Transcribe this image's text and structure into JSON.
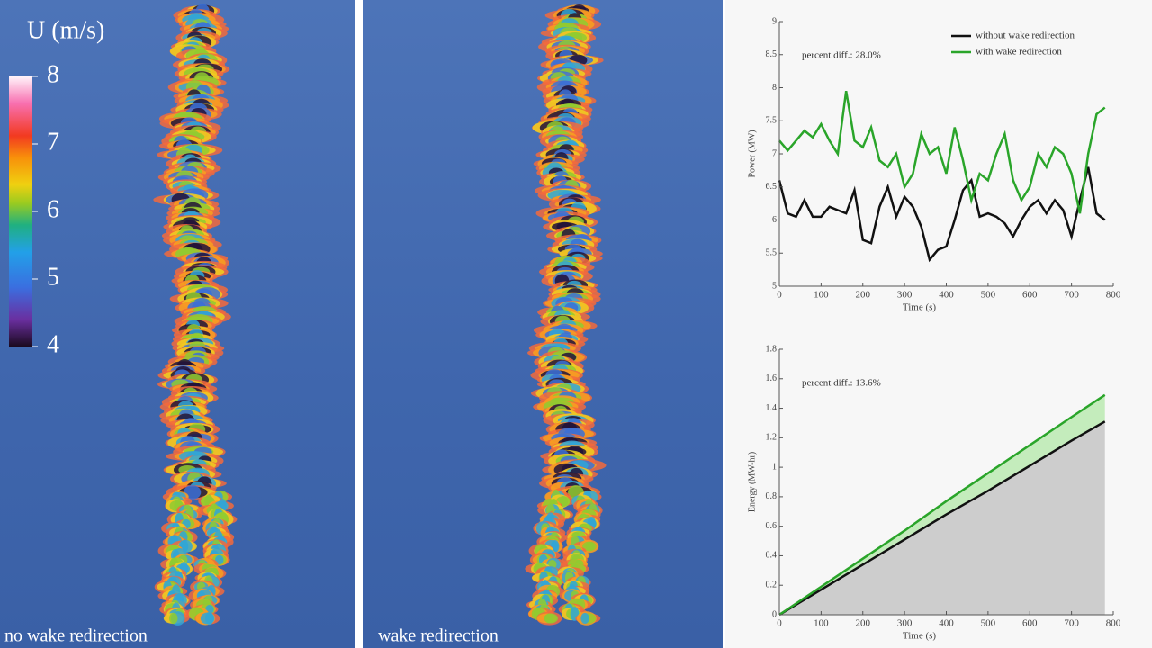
{
  "colorbar": {
    "title": "U (m/s)",
    "lim": [
      4,
      8
    ],
    "ticks": [
      4,
      5,
      6,
      7,
      8
    ]
  },
  "panels": [
    {
      "label": "no wake redirection"
    },
    {
      "label": "wake redirection"
    }
  ],
  "chart_data": [
    {
      "type": "line",
      "annotation": "percent diff.: 28.0%",
      "xlabel": "Time (s)",
      "ylabel": "Power (MW)",
      "xlim": [
        0,
        800
      ],
      "xticks": [
        0,
        100,
        200,
        300,
        400,
        500,
        600,
        700,
        800
      ],
      "ylim": [
        5,
        9
      ],
      "yticks": [
        5,
        5.5,
        6,
        6.5,
        7,
        7.5,
        8,
        8.5,
        9
      ],
      "legend": "upper right",
      "x": [
        0,
        20,
        40,
        60,
        80,
        100,
        120,
        140,
        160,
        180,
        200,
        220,
        240,
        260,
        280,
        300,
        320,
        340,
        360,
        380,
        400,
        420,
        440,
        460,
        480,
        500,
        520,
        540,
        560,
        580,
        600,
        620,
        640,
        660,
        680,
        700,
        720,
        740,
        760,
        780
      ],
      "series": [
        {
          "name": "without wake redirection",
          "color": "#111111",
          "values": [
            6.6,
            6.1,
            6.05,
            6.3,
            6.05,
            6.05,
            6.2,
            6.15,
            6.1,
            6.45,
            5.7,
            5.65,
            6.2,
            6.5,
            6.05,
            6.35,
            6.2,
            5.9,
            5.4,
            5.55,
            5.6,
            6.0,
            6.45,
            6.6,
            6.05,
            6.1,
            6.05,
            5.95,
            5.75,
            6.0,
            6.2,
            6.3,
            6.1,
            6.3,
            6.15,
            5.75,
            6.3,
            6.8,
            6.1,
            6.0
          ]
        },
        {
          "name": "with wake redirection",
          "color": "#2aa52a",
          "values": [
            7.2,
            7.05,
            7.2,
            7.35,
            7.25,
            7.45,
            7.2,
            7.0,
            7.95,
            7.2,
            7.1,
            7.4,
            6.9,
            6.8,
            7.0,
            6.5,
            6.7,
            7.3,
            7.0,
            7.1,
            6.7,
            7.4,
            6.9,
            6.3,
            6.7,
            6.6,
            7.0,
            7.3,
            6.6,
            6.3,
            6.5,
            7.0,
            6.8,
            7.1,
            7.0,
            6.7,
            6.1,
            7.0,
            7.6,
            7.7
          ]
        }
      ]
    },
    {
      "type": "area",
      "annotation": "percent diff.: 13.6%",
      "xlabel": "Time (s)",
      "ylabel": "Energy (MW-hr)",
      "xlim": [
        0,
        800
      ],
      "xticks": [
        0,
        100,
        200,
        300,
        400,
        500,
        600,
        700,
        800
      ],
      "ylim": [
        0,
        1.8
      ],
      "yticks": [
        0,
        0.2,
        0.4,
        0.6,
        0.8,
        1,
        1.2,
        1.4,
        1.6,
        1.8
      ],
      "x": [
        0,
        100,
        200,
        300,
        400,
        500,
        600,
        700,
        780
      ],
      "series": [
        {
          "name": "without wake redirection",
          "color": "#111111",
          "fill": "#cdcdcd",
          "values": [
            0,
            0.17,
            0.34,
            0.51,
            0.68,
            0.84,
            1.01,
            1.18,
            1.31
          ]
        },
        {
          "name": "with wake redirection",
          "color": "#2aa52a",
          "fill": "#c4ecbc",
          "values": [
            0,
            0.19,
            0.38,
            0.57,
            0.77,
            0.96,
            1.15,
            1.34,
            1.49
          ]
        }
      ]
    }
  ]
}
